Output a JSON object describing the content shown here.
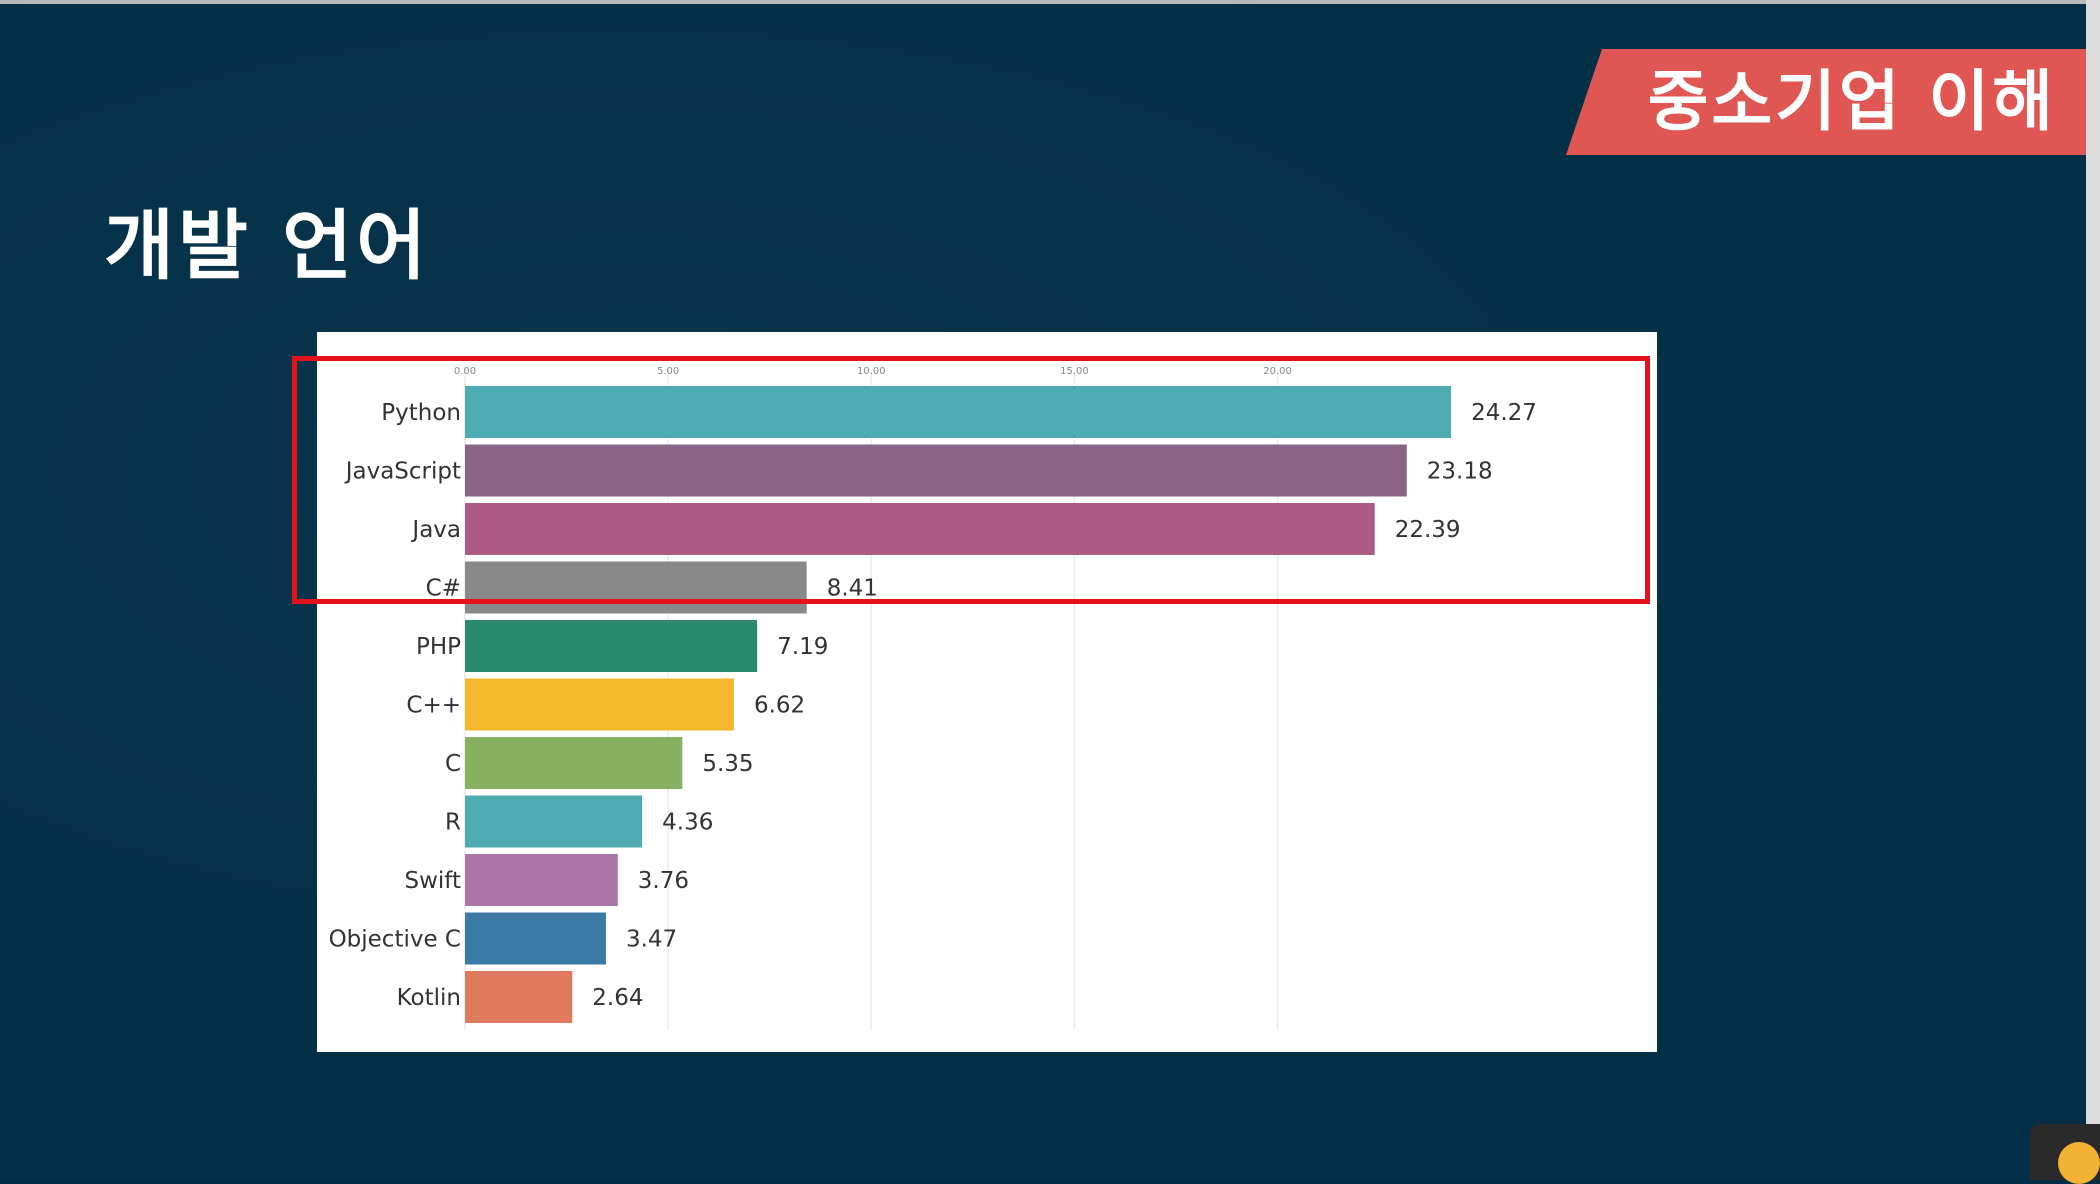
{
  "slide": {
    "title": "개발 언어",
    "banner": "중소기업 이해"
  },
  "colors": {
    "background": "#032f47",
    "banner": "#e05652",
    "highlight": "#e4121b"
  },
  "chart_data": {
    "type": "bar",
    "orientation": "horizontal",
    "title": "",
    "xlabel": "",
    "ylabel": "",
    "xlim": [
      0,
      27
    ],
    "x_ticks": [
      0,
      5,
      10,
      15,
      20
    ],
    "x_tick_labels": [
      "0.00",
      "5.00",
      "10.00",
      "15.00",
      "20.00"
    ],
    "grid": true,
    "categories": [
      "Python",
      "JavaScript",
      "Java",
      "C#",
      "PHP",
      "C++",
      "C",
      "R",
      "Swift",
      "Objective C",
      "Kotlin"
    ],
    "values": [
      24.27,
      23.18,
      22.39,
      8.41,
      7.19,
      6.62,
      5.35,
      4.36,
      3.76,
      3.47,
      2.64
    ],
    "value_labels": [
      "24.27",
      "23.18",
      "22.39",
      "8.41",
      "7.19",
      "6.62",
      "5.35",
      "4.36",
      "3.76",
      "3.47",
      "2.64"
    ],
    "bar_colors": [
      "#4fabb2",
      "#8a6486",
      "#ac5b84",
      "#898989",
      "#2a8a6d",
      "#f4b72e",
      "#87b060",
      "#4fabb2",
      "#ad74a8",
      "#3b7aa4",
      "#e07a5f"
    ],
    "highlighted": [
      "Python",
      "JavaScript",
      "Java",
      "C#"
    ]
  }
}
